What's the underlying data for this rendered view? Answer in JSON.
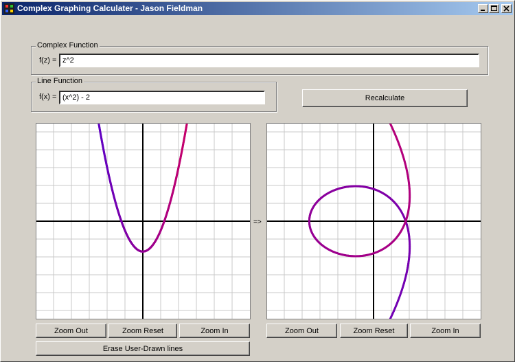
{
  "window": {
    "title": "Complex Graphing Calculater - Jason Fieldman",
    "minimize_label": "minimize",
    "maximize_label": "maximize",
    "close_label": "close"
  },
  "complex_group": {
    "label": "Complex Function",
    "field_label": "f(z) =",
    "value": "z^2"
  },
  "line_group": {
    "label": "Line Function",
    "field_label": "f(x) =",
    "value": "(x^2) - 2"
  },
  "recalculate_label": "Recalculate",
  "transform_arrow": "=>",
  "left_graph": {
    "zoom_out": "Zoom Out",
    "zoom_reset": "Zoom Reset",
    "zoom_in": "Zoom In",
    "erase": "Erase User-Drawn lines"
  },
  "right_graph": {
    "zoom_out": "Zoom Out",
    "zoom_reset": "Zoom Reset",
    "zoom_in": "Zoom In"
  },
  "colors": {
    "curve_start": "#5a00c8",
    "curve_end": "#cc0066",
    "grid": "#c8c8c8",
    "axis": "#000000"
  }
}
